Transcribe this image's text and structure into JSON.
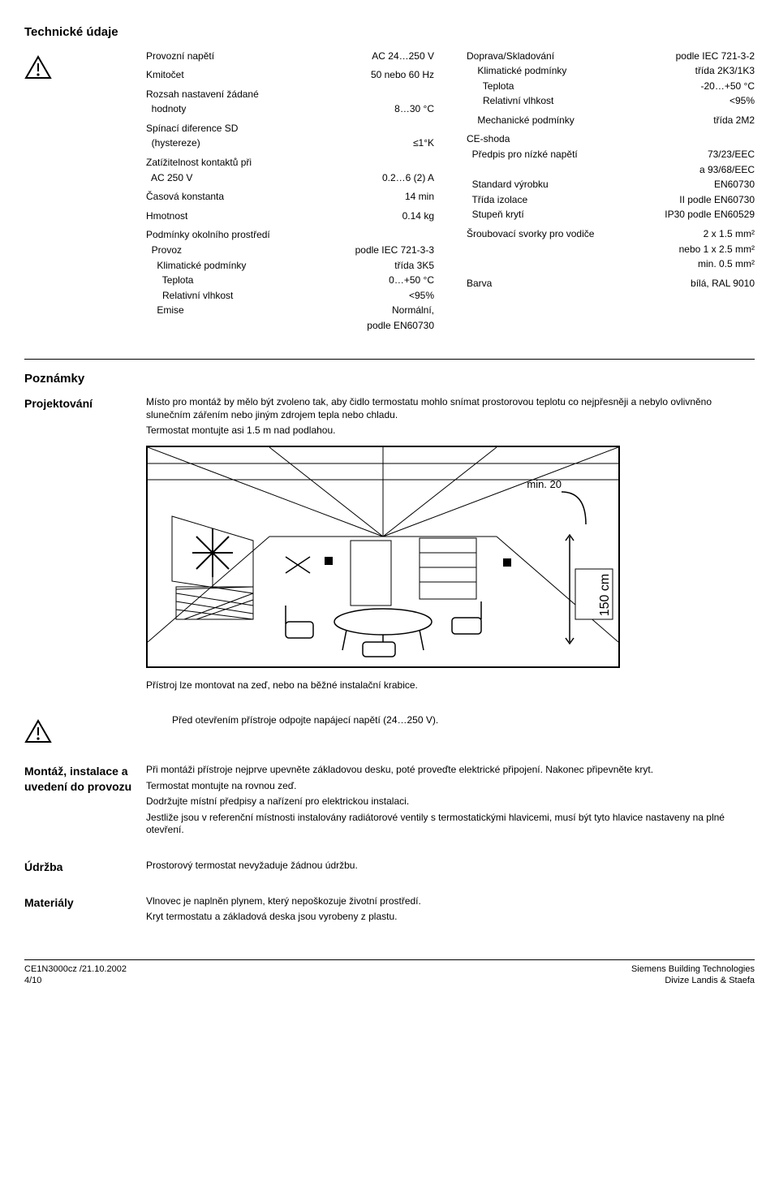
{
  "title_tech": "Technické údaje",
  "specs_left": [
    {
      "group": [
        {
          "l": "Provozní napětí",
          "v": "AC 24…250 V"
        }
      ]
    },
    {
      "group": [
        {
          "l": "Kmitočet",
          "v": "50 nebo 60 Hz"
        }
      ]
    },
    {
      "group": [
        {
          "l": "Rozsah nastavení žádané",
          "v": ""
        },
        {
          "l": "  hodnoty",
          "v": "8…30 °C"
        }
      ]
    },
    {
      "group": [
        {
          "l": "Spínací diference SD",
          "v": ""
        },
        {
          "l": "  (hystereze)",
          "v": "≤1°K"
        }
      ]
    },
    {
      "group": [
        {
          "l": "Zatížitelnost kontaktů při",
          "v": ""
        },
        {
          "l": "  AC 250 V",
          "v": "0.2…6 (2) A"
        }
      ]
    },
    {
      "group": [
        {
          "l": "Časová konstanta",
          "v": "14 min"
        }
      ]
    },
    {
      "group": [
        {
          "l": "Hmotnost",
          "v": "0.14 kg"
        }
      ]
    },
    {
      "group": [
        {
          "l": "Podmínky okolního prostředí",
          "v": ""
        },
        {
          "l": "  Provoz",
          "v": "podle IEC 721-3-3"
        },
        {
          "l": "    Klimatické podmínky",
          "v": "třída 3K5"
        },
        {
          "l": "      Teplota",
          "v": "0…+50 °C"
        },
        {
          "l": "      Relativní vlhkost",
          "v": "<95%"
        },
        {
          "l": "    Emise",
          "v": "Normální,"
        },
        {
          "l": "",
          "v": "podle EN60730"
        }
      ]
    }
  ],
  "specs_right": [
    {
      "group": [
        {
          "l": "Doprava/Skladování",
          "v": "podle IEC 721-3-2"
        },
        {
          "l": "    Klimatické podmínky",
          "v": "třída 2K3/1K3"
        },
        {
          "l": "      Teplota",
          "v": "-20…+50 °C"
        },
        {
          "l": "      Relativní vlhkost",
          "v": "<95%"
        }
      ]
    },
    {
      "group": [
        {
          "l": "    Mechanické podmínky",
          "v": "třída 2M2"
        }
      ]
    },
    {
      "group": [
        {
          "l": "CE-shoda",
          "v": ""
        },
        {
          "l": "  Předpis pro nízké napětí",
          "v": "73/23/EEC"
        },
        {
          "l": "",
          "v": "a 93/68/EEC"
        },
        {
          "l": "  Standard výrobku",
          "v": "EN60730"
        },
        {
          "l": "  Třída izolace",
          "v": "II podle EN60730"
        },
        {
          "l": "  Stupeň krytí",
          "v": "IP30 podle EN60529"
        }
      ]
    },
    {
      "group": [
        {
          "l": "Šroubovací svorky pro vodiče",
          "v": "2 x 1.5 mm²"
        },
        {
          "l": "",
          "v": "nebo 1 x 2.5 mm²"
        },
        {
          "l": "",
          "v": "min. 0.5 mm²"
        }
      ]
    },
    {
      "group": [
        {
          "l": "Barva",
          "v": "bílá, RAL 9010"
        }
      ]
    }
  ],
  "title_notes": "Poznámky",
  "lead_project": "Projektování",
  "project_text": "Místo pro montáž by mělo být zvoleno tak, aby čidlo termostatu mohlo snímat prostorovou teplotu co nejpřesněji a nebylo ovlivněno slunečním zářením nebo jiným zdrojem tepla nebo chladu.\nTermostat montujte asi 1.5 m nad podlahou.",
  "illus_labels": {
    "min20": "min. 20",
    "h150": "150 cm"
  },
  "mount_line": "Přístroj lze montovat na zeď, nebo na běžné instalační krabice.",
  "warn_open": "Před otevřením přístroje odpojte napájecí napětí (24…250 V).",
  "lead_mount": "Montáž, instalace a uvedení do provozu",
  "mount_text": "Při montáži přístroje nejprve upevněte základovou desku, poté proveďte elektrické připojení. Nakonec připevněte kryt.\nTermostat montujte na rovnou zeď.\nDodržujte místní předpisy a nařízení pro elektrickou instalaci.\nJestliže jsou v referenční místnosti instalovány radiátorové ventily s termostatickými hlavicemi, musí být tyto hlavice nastaveny na plné otevření.",
  "lead_maint": "Údržba",
  "maint_text": "Prostorový termostat nevyžaduje žádnou údržbu.",
  "lead_mat": "Materiály",
  "mat_text": "Vlnovec je naplněn plynem, který nepoškozuje životní prostředí.\nKryt termostatu a základová deska jsou vyrobeny z plastu.",
  "footer": {
    "left1": "CE1N3000cz /21.10.2002",
    "left2": "4/10",
    "right1": "Siemens Building Technologies",
    "right2": "Divize Landis & Staefa"
  },
  "colors": {
    "text": "#000000",
    "bg": "#ffffff",
    "line": "#000000"
  }
}
